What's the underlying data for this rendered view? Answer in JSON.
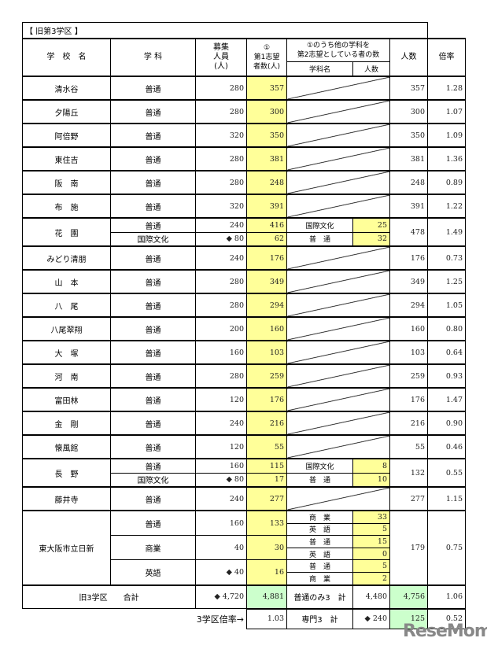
{
  "title": "【 旧第3学区 】",
  "headers": {
    "school": "学　校　名",
    "course": "学 科",
    "quota": "募集\n人員\n(人)",
    "first": "①\n第1志望\n者数(人)",
    "second": "①のうち他の学科を\n第2志望としている者の数",
    "second_course": "学科名",
    "second_count": "人数",
    "total": "人数",
    "ratio": "倍率"
  },
  "schools": [
    {
      "name": "清水谷",
      "courses": [
        {
          "course": "普通",
          "quota": "280",
          "first": "357",
          "second": []
        }
      ],
      "total": "357",
      "ratio": "1.28"
    },
    {
      "name": "夕陽丘",
      "courses": [
        {
          "course": "普通",
          "quota": "280",
          "first": "300",
          "second": []
        }
      ],
      "total": "300",
      "ratio": "1.07"
    },
    {
      "name": "阿倍野",
      "courses": [
        {
          "course": "普通",
          "quota": "320",
          "first": "350",
          "second": []
        }
      ],
      "total": "350",
      "ratio": "1.09"
    },
    {
      "name": "東住吉",
      "courses": [
        {
          "course": "普通",
          "quota": "280",
          "first": "381",
          "second": []
        }
      ],
      "total": "381",
      "ratio": "1.36"
    },
    {
      "name": "阪　南",
      "courses": [
        {
          "course": "普通",
          "quota": "280",
          "first": "248",
          "second": []
        }
      ],
      "total": "248",
      "ratio": "0.89"
    },
    {
      "name": "布　施",
      "courses": [
        {
          "course": "普通",
          "quota": "320",
          "first": "391",
          "second": []
        }
      ],
      "total": "391",
      "ratio": "1.22"
    },
    {
      "name": "花　園",
      "courses": [
        {
          "course": "普通",
          "quota": "240",
          "first": "416",
          "second": [
            {
              "course": "国際文化",
              "count": "25"
            }
          ]
        },
        {
          "course": "国際文化",
          "quota": "◆ 80",
          "first": "62",
          "second": [
            {
              "course": "普　通",
              "count": "32"
            }
          ]
        }
      ],
      "total": "478",
      "ratio": "1.49"
    },
    {
      "name": "みどり清朋",
      "courses": [
        {
          "course": "普通",
          "quota": "240",
          "first": "176",
          "second": []
        }
      ],
      "total": "176",
      "ratio": "0.73"
    },
    {
      "name": "山　本",
      "courses": [
        {
          "course": "普通",
          "quota": "280",
          "first": "349",
          "second": []
        }
      ],
      "total": "349",
      "ratio": "1.25"
    },
    {
      "name": "八　尾",
      "courses": [
        {
          "course": "普通",
          "quota": "280",
          "first": "294",
          "second": []
        }
      ],
      "total": "294",
      "ratio": "1.05"
    },
    {
      "name": "八尾翠翔",
      "courses": [
        {
          "course": "普通",
          "quota": "200",
          "first": "160",
          "second": []
        }
      ],
      "total": "160",
      "ratio": "0.80"
    },
    {
      "name": "大　塚",
      "courses": [
        {
          "course": "普通",
          "quota": "160",
          "first": "103",
          "second": []
        }
      ],
      "total": "103",
      "ratio": "0.64"
    },
    {
      "name": "河　南",
      "courses": [
        {
          "course": "普通",
          "quota": "280",
          "first": "259",
          "second": []
        }
      ],
      "total": "259",
      "ratio": "0.93"
    },
    {
      "name": "富田林",
      "courses": [
        {
          "course": "普通",
          "quota": "120",
          "first": "176",
          "second": []
        }
      ],
      "total": "176",
      "ratio": "1.47"
    },
    {
      "name": "金　剛",
      "courses": [
        {
          "course": "普通",
          "quota": "240",
          "first": "216",
          "second": []
        }
      ],
      "total": "216",
      "ratio": "0.90"
    },
    {
      "name": "懐風館",
      "courses": [
        {
          "course": "普通",
          "quota": "120",
          "first": "55",
          "second": []
        }
      ],
      "total": "55",
      "ratio": "0.46"
    },
    {
      "name": "長　野",
      "courses": [
        {
          "course": "普通",
          "quota": "160",
          "first": "115",
          "second": [
            {
              "course": "国際文化",
              "count": "8"
            }
          ]
        },
        {
          "course": "国際文化",
          "quota": "◆ 80",
          "first": "17",
          "second": [
            {
              "course": "普　通",
              "count": "10"
            }
          ]
        }
      ],
      "total": "132",
      "ratio": "0.55"
    },
    {
      "name": "藤井寺",
      "courses": [
        {
          "course": "普通",
          "quota": "240",
          "first": "277",
          "second": []
        }
      ],
      "total": "277",
      "ratio": "1.15"
    },
    {
      "name": "東大阪市立日新",
      "courses": [
        {
          "course": "普通",
          "quota": "160",
          "first": "133",
          "second": [
            {
              "course": "商　業",
              "count": "33"
            },
            {
              "course": "英　語",
              "count": "5"
            }
          ]
        },
        {
          "course": "商業",
          "quota": "40",
          "first": "30",
          "second": [
            {
              "course": "普　通",
              "count": "15"
            },
            {
              "course": "英　語",
              "count": "0"
            }
          ]
        },
        {
          "course": "英語",
          "quota": "◆ 40",
          "first": "16",
          "second": [
            {
              "course": "普　通",
              "count": "5"
            },
            {
              "course": "商　業",
              "count": "2"
            }
          ]
        }
      ],
      "total": "179",
      "ratio": "0.75"
    }
  ],
  "totals": {
    "label": "旧3学区　　合計",
    "quota": "◆ 4,720",
    "first": "4,881",
    "general_label": "普通のみ3　計",
    "general_quota": "4,480",
    "general_total": "4,756",
    "ratio": "1.06",
    "district_ratio_label": "3学区倍率→",
    "district_ratio": "1.03",
    "special_label": "専門3　計",
    "special_quota": "◆ 240",
    "special_total": "125",
    "special_ratio": "0.52"
  },
  "colors": {
    "first_choice": "#ffff99",
    "totals": "#ccffcc"
  },
  "logo": "ReseMom"
}
